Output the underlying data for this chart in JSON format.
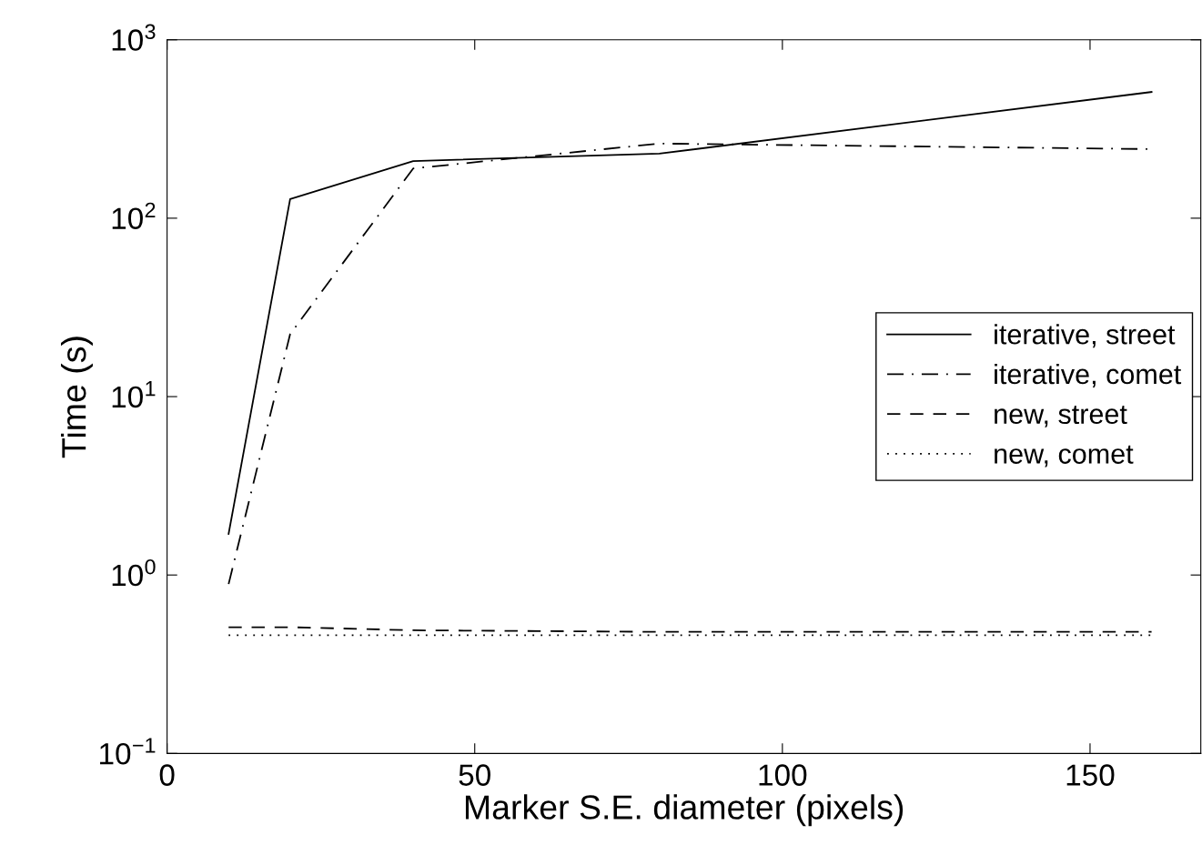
{
  "chart_data": {
    "type": "line",
    "xlabel": "Marker S.E. diameter (pixels)",
    "ylabel": "Time (s)",
    "log": "y",
    "x": [
      10,
      20,
      40,
      80,
      160
    ],
    "series": [
      {
        "name": "iterative, street",
        "color": "#000000",
        "line_style": "solid",
        "values": [
          1.7,
          128,
          209,
          230,
          510
        ]
      },
      {
        "name": "iterative, comet",
        "color": "#000000",
        "line_style": "dashdot",
        "values": [
          0.89,
          22.4,
          190,
          262,
          244
        ]
      },
      {
        "name": "new, street",
        "color": "#000000",
        "line_style": "dashed",
        "values": [
          0.51,
          0.51,
          0.49,
          0.48,
          0.48
        ]
      },
      {
        "name": "new, comet",
        "color": "#000000",
        "line_style": "dotted",
        "values": [
          0.46,
          0.46,
          0.46,
          0.46,
          0.46
        ]
      }
    ],
    "xlim": [
      0,
      168
    ],
    "xticks": [
      0,
      50,
      100,
      150
    ],
    "ylim": [
      0.1,
      1000
    ],
    "yticks": [
      {
        "value": 0.1,
        "label": "10$^{−1}$"
      },
      {
        "value": 1,
        "label": "10$^{0}$"
      },
      {
        "value": 10,
        "label": "10$^{1}$"
      },
      {
        "value": 100,
        "label": "10$^{2}$"
      },
      {
        "value": 1000,
        "label": "10$^{3}$"
      }
    ],
    "grid": false,
    "legend": "center right",
    "marker": "none"
  }
}
